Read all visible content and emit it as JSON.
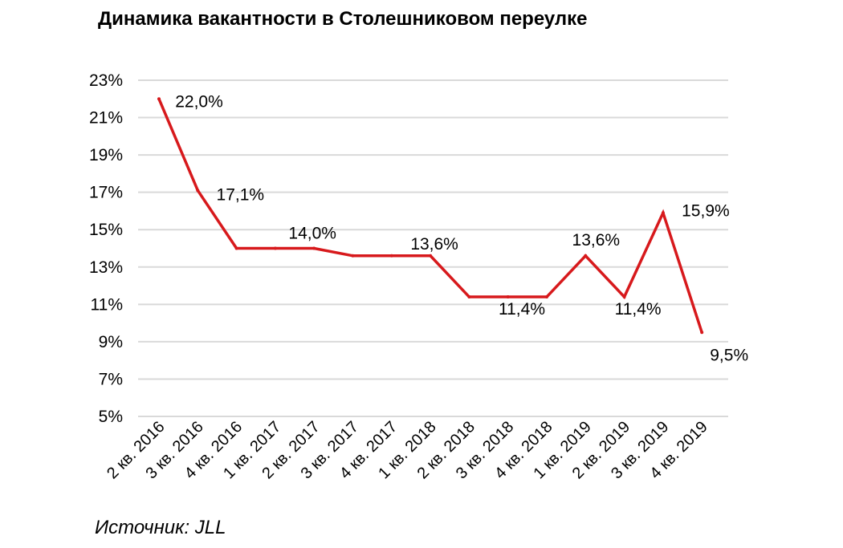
{
  "chart_data": {
    "type": "line",
    "title": "Динамика вакантности в Столешниковом переулке",
    "source": "Источник: JLL",
    "categories": [
      "2 кв. 2016",
      "3 кв. 2016",
      "4 кв. 2016",
      "1 кв. 2017",
      "2 кв. 2017",
      "3 кв. 2017",
      "4 кв. 2017",
      "1 кв. 2018",
      "2 кв. 2018",
      "3 кв. 2018",
      "4 кв. 2018",
      "1 кв. 2019",
      "2 кв. 2019",
      "3 кв. 2019",
      "4 кв. 2019"
    ],
    "series": [
      {
        "values": [
          22.0,
          17.1,
          14.0,
          14.0,
          14.0,
          13.6,
          13.6,
          13.6,
          11.4,
          11.4,
          11.4,
          13.6,
          11.4,
          15.9,
          9.5
        ],
        "color": "#d7191c"
      }
    ],
    "data_labels": [
      {
        "index": 0,
        "text": "22,0%"
      },
      {
        "index": 1,
        "text": "17,1%"
      },
      {
        "index": 4,
        "text": "14,0%"
      },
      {
        "index": 7,
        "text": "13,6%"
      },
      {
        "index": 10,
        "text": "11,4%"
      },
      {
        "index": 11,
        "text": "13,6%"
      },
      {
        "index": 12,
        "text": "11,4%"
      },
      {
        "index": 13,
        "text": "15,9%"
      },
      {
        "index": 14,
        "text": "9,5%"
      }
    ],
    "yticks": [
      "5%",
      "7%",
      "9%",
      "11%",
      "13%",
      "15%",
      "17%",
      "19%",
      "21%",
      "23%"
    ],
    "ylim": [
      5,
      23
    ],
    "ystep": 2,
    "grid": true,
    "legend": false,
    "xlabel": "",
    "ylabel": ""
  }
}
